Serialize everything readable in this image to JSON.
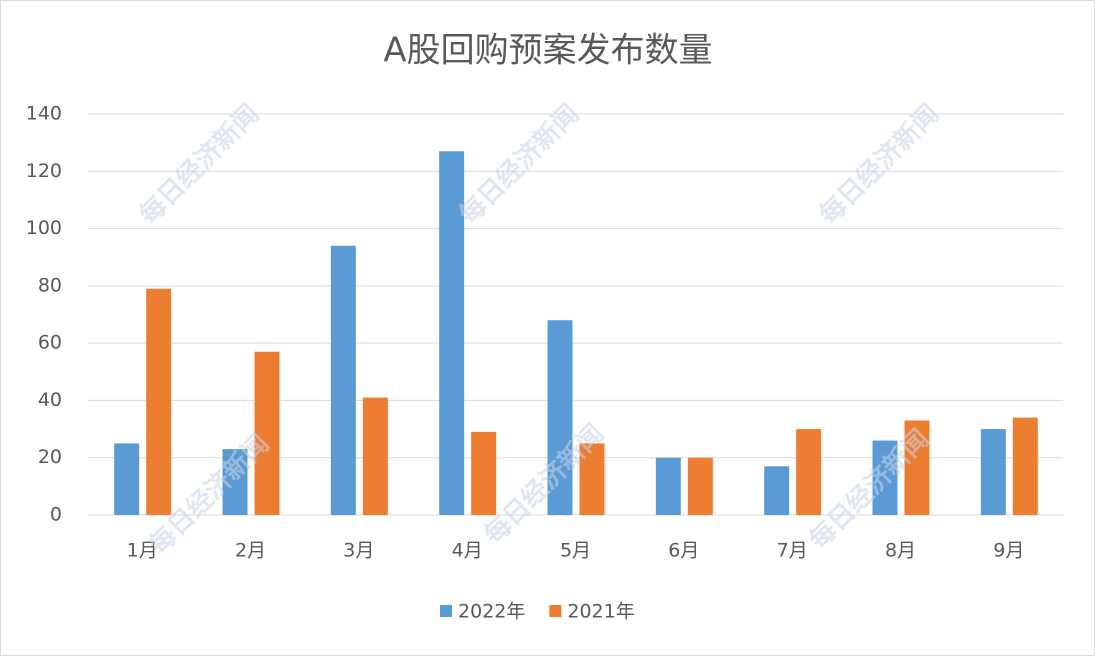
{
  "chart_data": {
    "type": "bar",
    "title": "A股回购预案发布数量",
    "watermark": "每日经济新闻",
    "categories": [
      "1月",
      "2月",
      "3月",
      "4月",
      "5月",
      "6月",
      "7月",
      "8月",
      "9月"
    ],
    "series": [
      {
        "name": "2022年",
        "color": "#5b9bd5",
        "values": [
          25,
          23,
          94,
          127,
          68,
          20,
          17,
          26,
          30
        ]
      },
      {
        "name": "2021年",
        "color": "#ed7d31",
        "values": [
          79,
          57,
          41,
          29,
          25,
          20,
          30,
          33,
          34
        ]
      }
    ],
    "ylim": [
      0,
      140
    ],
    "yticks": [
      0,
      20,
      40,
      60,
      80,
      100,
      120,
      140
    ],
    "grid": true,
    "legend": "bottom"
  }
}
